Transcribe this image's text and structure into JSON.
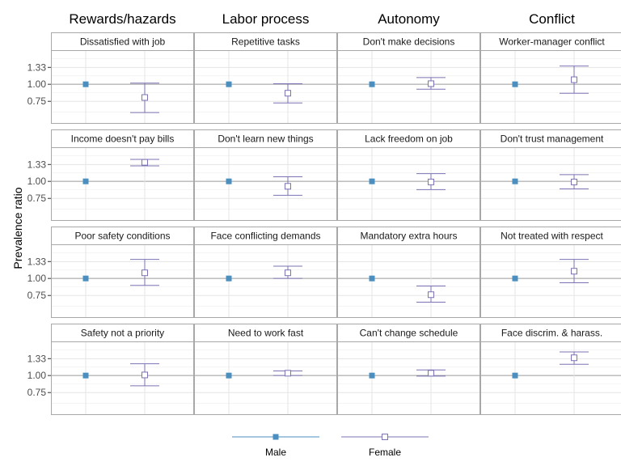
{
  "chart_data": {
    "type": "scatter",
    "ylabel": "Prevalence ratio",
    "y_ticks": [
      0.75,
      1.0,
      1.33
    ],
    "y_tick_labels": [
      "0.75",
      "1.00",
      "1.33"
    ],
    "y_scale": "log",
    "ylim": [
      0.52,
      1.78
    ],
    "x_categories": [
      "Male",
      "Female"
    ],
    "reference_line": 1.0,
    "grid": true,
    "legend": {
      "position": "bottom",
      "entries": [
        {
          "name": "Male",
          "marker": "filled-square",
          "color": "#4a8fbf"
        },
        {
          "name": "Female",
          "marker": "open-square",
          "color": "#7b73b3"
        }
      ]
    },
    "columns": [
      "Rewards/hazards",
      "Labor process",
      "Autonomy",
      "Conflict"
    ],
    "panels": [
      {
        "title": "Dissatisfied with job",
        "row": 0,
        "col": 0,
        "male": 1.0,
        "female": {
          "est": 0.8,
          "lo": 0.62,
          "hi": 1.02
        }
      },
      {
        "title": "Repetitive tasks",
        "row": 0,
        "col": 1,
        "male": 1.0,
        "female": {
          "est": 0.86,
          "lo": 0.73,
          "hi": 1.01
        }
      },
      {
        "title": "Don't make decisions",
        "row": 0,
        "col": 2,
        "male": 1.0,
        "female": {
          "est": 1.01,
          "lo": 0.92,
          "hi": 1.12
        }
      },
      {
        "title": "Worker-manager conflict",
        "row": 0,
        "col": 3,
        "male": 1.0,
        "female": {
          "est": 1.08,
          "lo": 0.86,
          "hi": 1.36
        }
      },
      {
        "title": "Income doesn't pay bills",
        "row": 1,
        "col": 0,
        "male": 1.0,
        "female": {
          "est": 1.38,
          "lo": 1.3,
          "hi": 1.45
        }
      },
      {
        "title": "Don't learn new things",
        "row": 1,
        "col": 1,
        "male": 1.0,
        "female": {
          "est": 0.92,
          "lo": 0.79,
          "hi": 1.08
        }
      },
      {
        "title": "Lack freedom on job",
        "row": 1,
        "col": 2,
        "male": 1.0,
        "female": {
          "est": 0.99,
          "lo": 0.87,
          "hi": 1.14
        }
      },
      {
        "title": "Don't trust management",
        "row": 1,
        "col": 3,
        "male": 1.0,
        "female": {
          "est": 0.99,
          "lo": 0.88,
          "hi": 1.12
        }
      },
      {
        "title": "Poor safety conditions",
        "row": 2,
        "col": 0,
        "male": 1.0,
        "female": {
          "est": 1.1,
          "lo": 0.89,
          "hi": 1.38
        }
      },
      {
        "title": "Face conflicting demands",
        "row": 2,
        "col": 1,
        "male": 1.0,
        "female": {
          "est": 1.1,
          "lo": 1.0,
          "hi": 1.23
        }
      },
      {
        "title": "Mandatory extra hours",
        "row": 2,
        "col": 2,
        "male": 1.0,
        "female": {
          "est": 0.76,
          "lo": 0.67,
          "hi": 0.88
        }
      },
      {
        "title": "Not treated with respect",
        "row": 2,
        "col": 3,
        "male": 1.0,
        "female": {
          "est": 1.13,
          "lo": 0.93,
          "hi": 1.38
        }
      },
      {
        "title": "Safety not a priority",
        "row": 3,
        "col": 0,
        "male": 1.0,
        "female": {
          "est": 1.01,
          "lo": 0.84,
          "hi": 1.22
        }
      },
      {
        "title": "Need to work fast",
        "row": 3,
        "col": 1,
        "male": 1.0,
        "female": {
          "est": 1.04,
          "lo": 1.0,
          "hi": 1.08
        }
      },
      {
        "title": "Can't change schedule",
        "row": 3,
        "col": 2,
        "male": 1.0,
        "female": {
          "est": 1.04,
          "lo": 0.99,
          "hi": 1.1
        }
      },
      {
        "title": "Face discrim. & harass.",
        "row": 3,
        "col": 3,
        "male": 1.0,
        "female": {
          "est": 1.35,
          "lo": 1.21,
          "hi": 1.49
        }
      }
    ],
    "colors": {
      "male": "#4a8fbf",
      "female": "#7b73b3",
      "grid": "#e5e5e5",
      "refline": "#9a9a9a",
      "border": "#a8a8a8",
      "strip_bg": "#ffffff"
    }
  }
}
